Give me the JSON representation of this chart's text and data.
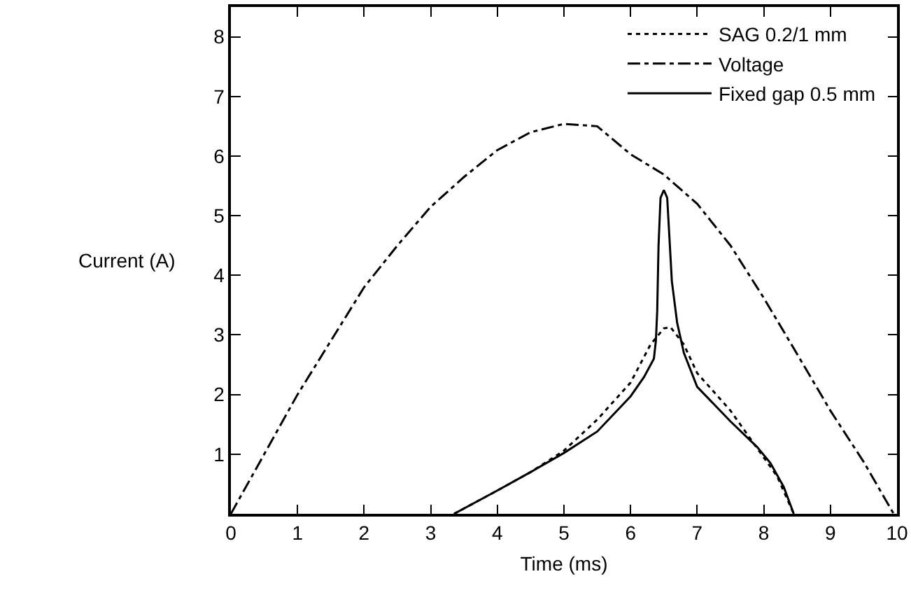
{
  "chart_data": {
    "type": "line",
    "xlabel": "Time (ms)",
    "ylabel": "Current (A)",
    "xlim": [
      0,
      10
    ],
    "ylim": [
      0,
      8.5
    ],
    "xticks": [
      0,
      1,
      2,
      3,
      4,
      5,
      6,
      7,
      8,
      9,
      10
    ],
    "yticks": [
      1,
      2,
      3,
      4,
      5,
      6,
      7,
      8
    ],
    "grid": false,
    "legend": "top right",
    "marker": "none",
    "series": [
      {
        "name": "SAG 0.2/1 mm",
        "color": "#000000",
        "line_style": "dotted",
        "x": [
          3.35,
          4,
          4.5,
          5,
          5.5,
          6,
          6.3,
          6.5,
          6.6,
          6.8,
          7,
          7.5,
          7.9,
          8.2,
          8.45
        ],
        "values": [
          0,
          0.39,
          0.7,
          1.06,
          1.58,
          2.2,
          2.84,
          3.11,
          3.13,
          2.84,
          2.36,
          1.73,
          1.1,
          0.63,
          0
        ]
      },
      {
        "name": "Voltage",
        "color": "#000000",
        "line_style": "dashdot",
        "x": [
          0,
          0.5,
          1,
          1.5,
          2,
          2.5,
          3,
          3.5,
          4,
          4.5,
          5,
          5.5,
          6,
          6.5,
          7,
          7.5,
          8,
          8.5,
          9,
          9.5,
          9.95
        ],
        "values": [
          0,
          1.0,
          2.0,
          2.9,
          3.8,
          4.5,
          5.15,
          5.65,
          6.1,
          6.4,
          6.54,
          6.5,
          6.03,
          5.69,
          5.2,
          4.5,
          3.62,
          2.68,
          1.73,
          0.87,
          0
        ]
      },
      {
        "name": "Fixed gap 0.5 mm",
        "color": "#000000",
        "line_style": "solid",
        "x": [
          3.35,
          4,
          4.5,
          5,
          5.5,
          6,
          6.2,
          6.35,
          6.38,
          6.4,
          6.42,
          6.45,
          6.5,
          6.55,
          6.58,
          6.62,
          6.7,
          6.8,
          7.0,
          7.5,
          7.9,
          8.1,
          8.3,
          8.45
        ],
        "values": [
          0,
          0.39,
          0.7,
          1.02,
          1.38,
          1.97,
          2.29,
          2.6,
          2.9,
          3.4,
          4.5,
          5.3,
          5.43,
          5.3,
          4.7,
          3.9,
          3.2,
          2.7,
          2.13,
          1.55,
          1.12,
          0.85,
          0.45,
          0
        ]
      }
    ]
  }
}
